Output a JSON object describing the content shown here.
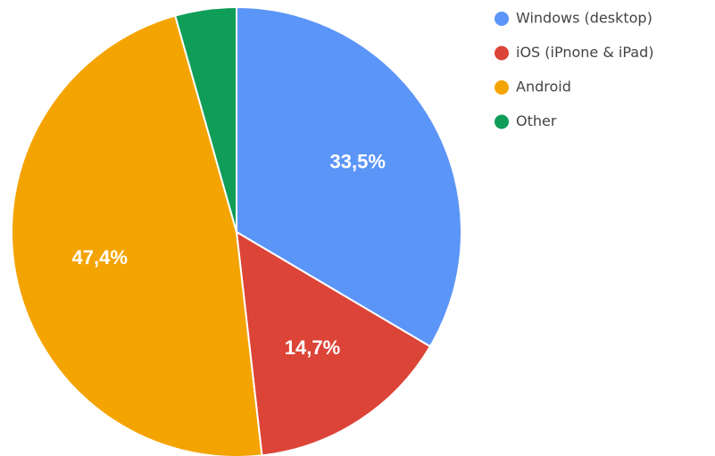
{
  "chart_data": {
    "type": "pie",
    "title": "",
    "slices": [
      {
        "label": "Windows (desktop)",
        "value": 33.5,
        "display": "33,5%",
        "color": "#5B95F7"
      },
      {
        "label": "iOS (iPnone & iPad)",
        "value": 14.7,
        "display": "14,7%",
        "color": "#DB4437"
      },
      {
        "label": "Android",
        "value": 47.4,
        "display": "47,4%",
        "color": "#F4A400"
      },
      {
        "label": "Other",
        "value": 4.4,
        "display": "",
        "color": "#0F9D58"
      }
    ],
    "start_angle_deg": 0,
    "direction": "clockwise",
    "legend_position": "top-right"
  }
}
